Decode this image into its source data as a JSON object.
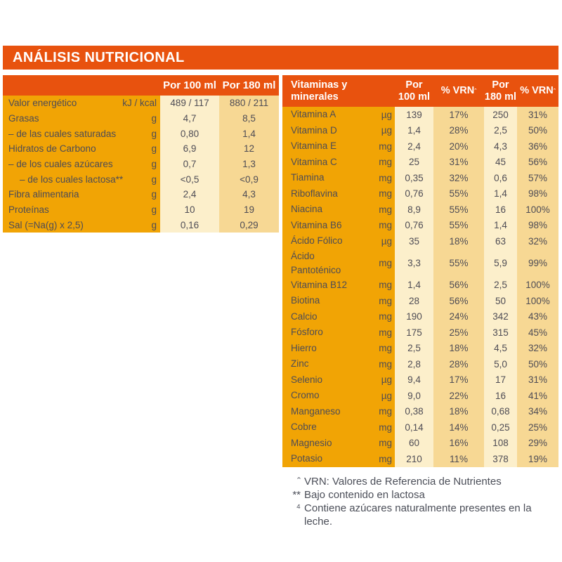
{
  "title": "ANÁLISIS NUTRICIONAL",
  "colors": {
    "orange": "#E8520E",
    "gold": "#F1A405",
    "cream_light": "#FCEFCB",
    "cream_dark": "#F7D894",
    "text": "#4E4C55",
    "header_text": "#FFFFFF"
  },
  "nutrition_table": {
    "headers": {
      "per100": "Por 100 ml",
      "per180": "Por 180 ml"
    },
    "rows": [
      {
        "label": "Valor energético",
        "unit": "kJ / kcal",
        "per100": "489 / 117",
        "per180": "880 / 211",
        "indent": 0
      },
      {
        "label": "Grasas",
        "unit": "g",
        "per100": "4,7",
        "per180": "8,5",
        "indent": 0
      },
      {
        "label": "– de las cuales saturadas",
        "unit": "g",
        "per100": "0,80",
        "per180": "1,4",
        "indent": 0
      },
      {
        "label": "Hidratos de Carbono",
        "unit": "g",
        "per100": "6,9",
        "per180": "12",
        "indent": 0
      },
      {
        "label": "– de los cuales azúcares",
        "unit": "g",
        "per100": "0,7",
        "per180": "1,3",
        "indent": 0
      },
      {
        "label": "– de los cuales lactosa**",
        "unit": "g",
        "per100": "<0,5",
        "per180": "<0,9",
        "indent": 1
      },
      {
        "label": "Fibra alimentaria",
        "unit": "g",
        "per100": "2,4",
        "per180": "4,3",
        "indent": 0
      },
      {
        "label": "Proteínas",
        "unit": "g",
        "per100": "10",
        "per180": "19",
        "indent": 0
      },
      {
        "label": "Sal (=Na(g) x 2,5)",
        "unit": "g",
        "per100": "0,16",
        "per180": "0,29",
        "indent": 0
      }
    ]
  },
  "vitamins_table": {
    "headers": {
      "title": "Vitaminas y\nminerales",
      "per100": "Por\n100 ml",
      "vrn_label": "% VRN",
      "vrn_sup": "ˆ",
      "per180": "Por\n180 ml"
    },
    "rows": [
      {
        "label": "Vitamina A",
        "unit": "µg",
        "per100": "139",
        "vrn100": "17%",
        "per180": "250",
        "vrn180": "31%"
      },
      {
        "label": "Vitamina D",
        "unit": "µg",
        "per100": "1,4",
        "vrn100": "28%",
        "per180": "2,5",
        "vrn180": "50%"
      },
      {
        "label": "Vitamina E",
        "unit": "mg",
        "per100": "2,4",
        "vrn100": "20%",
        "per180": "4,3",
        "vrn180": "36%"
      },
      {
        "label": "Vitamina C",
        "unit": "mg",
        "per100": "25",
        "vrn100": "31%",
        "per180": "45",
        "vrn180": "56%"
      },
      {
        "label": "Tiamina",
        "unit": "mg",
        "per100": "0,35",
        "vrn100": "32%",
        "per180": "0,6",
        "vrn180": "57%"
      },
      {
        "label": "Riboflavina",
        "unit": "mg",
        "per100": "0,76",
        "vrn100": "55%",
        "per180": "1,4",
        "vrn180": "98%"
      },
      {
        "label": "Niacina",
        "unit": "mg",
        "per100": "8,9",
        "vrn100": "55%",
        "per180": "16",
        "vrn180": "100%"
      },
      {
        "label": "Vitamina B6",
        "unit": "mg",
        "per100": "0,76",
        "vrn100": "55%",
        "per180": "1,4",
        "vrn180": "98%"
      },
      {
        "label": "Ácido Fólico",
        "unit": "µg",
        "per100": "35",
        "vrn100": "18%",
        "per180": "63",
        "vrn180": "32%"
      },
      {
        "label": "Ácido\nPantoténico",
        "unit": "mg",
        "per100": "3,3",
        "vrn100": "55%",
        "per180": "5,9",
        "vrn180": "99%"
      },
      {
        "label": "Vitamina B12",
        "unit": "mg",
        "per100": "1,4",
        "vrn100": "56%",
        "per180": "2,5",
        "vrn180": "100%"
      },
      {
        "label": "Biotina",
        "unit": "mg",
        "per100": "28",
        "vrn100": "56%",
        "per180": "50",
        "vrn180": "100%"
      },
      {
        "label": "Calcio",
        "unit": "mg",
        "per100": "190",
        "vrn100": "24%",
        "per180": "342",
        "vrn180": "43%"
      },
      {
        "label": "Fósforo",
        "unit": "mg",
        "per100": "175",
        "vrn100": "25%",
        "per180": "315",
        "vrn180": "45%"
      },
      {
        "label": "Hierro",
        "unit": "mg",
        "per100": "2,5",
        "vrn100": "18%",
        "per180": "4,5",
        "vrn180": "32%"
      },
      {
        "label": "Zinc",
        "unit": "mg",
        "per100": "2,8",
        "vrn100": "28%",
        "per180": "5,0",
        "vrn180": "50%"
      },
      {
        "label": "Selenio",
        "unit": "µg",
        "per100": "9,4",
        "vrn100": "17%",
        "per180": "17",
        "vrn180": "31%"
      },
      {
        "label": "Cromo",
        "unit": "µg",
        "per100": "9,0",
        "vrn100": "22%",
        "per180": "16",
        "vrn180": "41%"
      },
      {
        "label": "Manganeso",
        "unit": "mg",
        "per100": "0,38",
        "vrn100": "18%",
        "per180": "0,68",
        "vrn180": "34%"
      },
      {
        "label": "Cobre",
        "unit": "mg",
        "per100": "0,14",
        "vrn100": "14%",
        "per180": "0,25",
        "vrn180": "25%"
      },
      {
        "label": "Magnesio",
        "unit": "mg",
        "per100": "60",
        "vrn100": "16%",
        "per180": "108",
        "vrn180": "29%"
      },
      {
        "label": "Potasio",
        "unit": "mg",
        "per100": "210",
        "vrn100": "11%",
        "per180": "378",
        "vrn180": "19%"
      }
    ]
  },
  "footnotes": [
    {
      "marker": "ˆ",
      "text": "VRN: Valores de Referencia de Nutrientes"
    },
    {
      "marker": "**",
      "text": "Bajo contenido en lactosa"
    },
    {
      "marker": "⁴",
      "text": "Contiene azúcares naturalmente presentes en la leche."
    }
  ]
}
